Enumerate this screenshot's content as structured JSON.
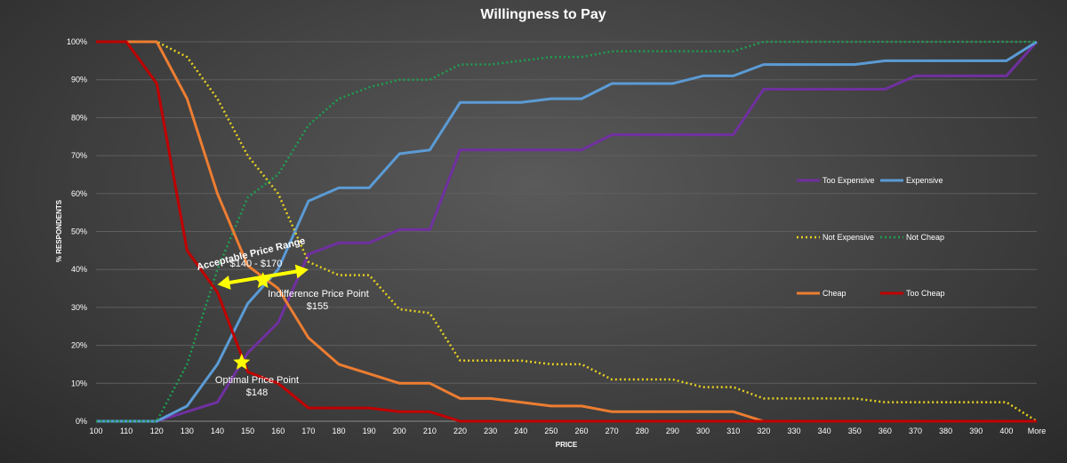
{
  "chart_data": {
    "type": "line",
    "title": "Willingness to Pay",
    "xlabel": "PRICE",
    "ylabel": "% RESPONDENTS",
    "ylim": [
      0,
      100
    ],
    "categories": [
      "100",
      "110",
      "120",
      "130",
      "140",
      "150",
      "160",
      "170",
      "180",
      "190",
      "200",
      "210",
      "220",
      "230",
      "240",
      "250",
      "260",
      "270",
      "280",
      "290",
      "300",
      "310",
      "320",
      "330",
      "340",
      "350",
      "360",
      "370",
      "380",
      "390",
      "400",
      "More"
    ],
    "y_ticks": [
      "0%",
      "10%",
      "20%",
      "30%",
      "40%",
      "50%",
      "60%",
      "70%",
      "80%",
      "90%",
      "100%"
    ],
    "series": [
      {
        "name": "Too Expensive",
        "color": "#7030a0",
        "style": "solid",
        "values": [
          0,
          0,
          0,
          2.5,
          5,
          18,
          26,
          44,
          47,
          47,
          50.5,
          50.5,
          71.5,
          71.5,
          71.5,
          71.5,
          71.5,
          75.5,
          75.5,
          75.5,
          75.5,
          75.5,
          87.5,
          87.5,
          87.5,
          87.5,
          87.5,
          91,
          91,
          91,
          91,
          100
        ]
      },
      {
        "name": "Expensive",
        "color": "#5b9bd5",
        "style": "solid",
        "values": [
          0,
          0,
          0,
          4,
          15,
          31,
          40,
          58,
          61.5,
          61.5,
          70.5,
          71.5,
          84,
          84,
          84,
          85,
          85,
          89,
          89,
          89,
          91,
          91,
          94,
          94,
          94,
          94,
          95,
          95,
          95,
          95,
          95,
          100
        ]
      },
      {
        "name": "Not Expensive",
        "color": "#e6d020",
        "style": "dotted",
        "values": [
          100,
          100,
          100,
          96,
          85,
          70,
          60,
          42,
          38.5,
          38.5,
          29.5,
          28.5,
          16,
          16,
          16,
          15,
          15,
          11,
          11,
          11,
          9,
          9,
          6,
          6,
          6,
          6,
          5,
          5,
          5,
          5,
          5,
          0
        ]
      },
      {
        "name": "Not Cheap",
        "color": "#1e9e50",
        "style": "dotted",
        "values": [
          0,
          0,
          0,
          15,
          40,
          59,
          65,
          78,
          85,
          88,
          90,
          90,
          94,
          94,
          95,
          96,
          96,
          97.5,
          97.5,
          97.5,
          97.5,
          97.5,
          100,
          100,
          100,
          100,
          100,
          100,
          100,
          100,
          100,
          100
        ]
      },
      {
        "name": "Cheap",
        "color": "#ed7d31",
        "style": "solid",
        "values": [
          100,
          100,
          100,
          85,
          60,
          41,
          35,
          22,
          15,
          12.5,
          10,
          10,
          6,
          6,
          5,
          4,
          4,
          2.5,
          2.5,
          2.5,
          2.5,
          2.5,
          0,
          0,
          0,
          0,
          0,
          0,
          0,
          0,
          0,
          0
        ]
      },
      {
        "name": "Too Cheap",
        "color": "#c00000",
        "style": "solid",
        "values": [
          100,
          100,
          89,
          45,
          34,
          13,
          10,
          3.5,
          3.5,
          3.5,
          2.5,
          2.5,
          0,
          0,
          0,
          0,
          0,
          0,
          0,
          0,
          0,
          0,
          0,
          0,
          0,
          0,
          0,
          0,
          0,
          0,
          0,
          0
        ]
      }
    ],
    "annotations": {
      "acceptable_range": {
        "label": "Acceptable Price Range",
        "value": "$140 - $170",
        "from": 140,
        "to": 170,
        "at": 40
      },
      "indifference": {
        "label": "Indifference Price Point",
        "value": "$155",
        "price": 155,
        "at": 37
      },
      "optimal": {
        "label": "Optimal Price Point",
        "value": "$148",
        "price": 148,
        "at": 15.5
      }
    }
  }
}
